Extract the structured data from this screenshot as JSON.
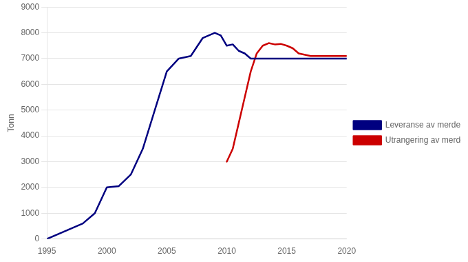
{
  "chart_data": {
    "type": "line",
    "ylabel": "Tonn",
    "xlim": [
      1995,
      2020
    ],
    "ylim": [
      0,
      9000
    ],
    "xticks": [
      1995,
      2000,
      2005,
      2010,
      2015,
      2020
    ],
    "yticks": [
      0,
      1000,
      2000,
      3000,
      4000,
      5000,
      6000,
      7000,
      8000,
      9000
    ],
    "grid": "y",
    "legend": "right",
    "series": [
      {
        "name": "Leveranse av merder (PE)",
        "color": "#000080",
        "x": [
          1995,
          1997,
          1998,
          1999,
          2000,
          2001,
          2002,
          2003,
          2004,
          2005,
          2006,
          2007,
          2008,
          2009,
          2009.5,
          2010,
          2010.5,
          2011,
          2011.5,
          2012,
          2013,
          2014,
          2015,
          2016,
          2017,
          2018,
          2019,
          2020
        ],
        "values": [
          0,
          400,
          600,
          1000,
          2000,
          2050,
          2500,
          3500,
          5000,
          6500,
          7000,
          7100,
          7800,
          8000,
          7900,
          7500,
          7550,
          7300,
          7200,
          7000,
          7000,
          7000,
          7000,
          7000,
          7000,
          7000,
          7000,
          7000
        ]
      },
      {
        "name": "Utrangering av merder (PE)",
        "color": "#cc0000",
        "x": [
          2010,
          2010.5,
          2011,
          2011.5,
          2012,
          2012.5,
          2013,
          2013.5,
          2014,
          2014.5,
          2015,
          2015.5,
          2016,
          2017,
          2018,
          2019,
          2020
        ],
        "values": [
          3000,
          3500,
          4500,
          5500,
          6500,
          7200,
          7500,
          7600,
          7550,
          7570,
          7500,
          7400,
          7200,
          7100,
          7100,
          7100,
          7100
        ]
      }
    ]
  }
}
